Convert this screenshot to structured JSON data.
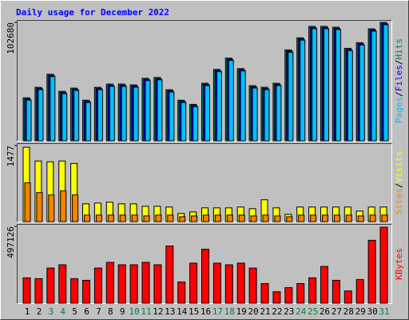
{
  "chart_data": [
    {
      "type": "bar",
      "title": "Daily usage for December 2022",
      "title_color": "#0000ff",
      "ylim": [
        0,
        102680
      ],
      "yticks": [
        102680
      ],
      "legend_separator": "/",
      "series": [
        {
          "name": "Hits",
          "color": "#00805c",
          "values": [
            37300,
            46400,
            57700,
            42900,
            45700,
            35200,
            46400,
            49200,
            49200,
            48500,
            54200,
            54900,
            44300,
            35200,
            31600,
            49900,
            61900,
            71700,
            62600,
            47800,
            46400,
            49900,
            78800,
            89300,
            99200,
            99200,
            98500,
            80200,
            85100,
            97100,
            102680
          ]
        },
        {
          "name": "Files",
          "color": "#0000ff",
          "values": [
            36300,
            45400,
            56700,
            41900,
            44700,
            34200,
            45400,
            48200,
            48200,
            47500,
            53200,
            53900,
            43300,
            34200,
            30600,
            48900,
            60900,
            70700,
            61600,
            46800,
            45400,
            48900,
            77800,
            88300,
            98200,
            98200,
            97500,
            79200,
            84100,
            96100,
            101600
          ]
        },
        {
          "name": "Pages",
          "color": "#00c0ff",
          "values": [
            35300,
            44400,
            55700,
            40900,
            43700,
            33200,
            44400,
            47200,
            47200,
            46500,
            52200,
            52900,
            42300,
            33200,
            29600,
            47900,
            59900,
            69700,
            60600,
            45800,
            44400,
            47900,
            76800,
            87300,
            97200,
            97200,
            96500,
            78200,
            83100,
            95100,
            100600
          ]
        }
      ]
    },
    {
      "type": "bar",
      "ylim": [
        0,
        1477
      ],
      "yticks": [
        1477
      ],
      "legend_separator": "/",
      "series": [
        {
          "name": "Visits",
          "color": "#ffff00",
          "values": [
            1445,
            1178,
            1162,
            1178,
            1130,
            345,
            361,
            377,
            345,
            345,
            298,
            298,
            283,
            157,
            188,
            267,
            267,
            267,
            283,
            251,
            424,
            267,
            141,
            283,
            283,
            283,
            283,
            283,
            204,
            283,
            283
          ]
        },
        {
          "name": "Sites",
          "color": "#ff8000",
          "values": [
            754,
            565,
            518,
            597,
            518,
            126,
            126,
            126,
            126,
            126,
            110,
            126,
            126,
            94,
            110,
            126,
            126,
            126,
            126,
            110,
            126,
            110,
            94,
            126,
            126,
            126,
            126,
            126,
            110,
            126,
            126
          ]
        }
      ]
    },
    {
      "type": "bar",
      "ylim": [
        0,
        497126
      ],
      "yticks": [
        497126
      ],
      "series": [
        {
          "name": "KBytes",
          "color": "#ff0000",
          "values": [
            164000,
            158700,
            227400,
            248600,
            158700,
            148100,
            227400,
            264400,
            248600,
            248600,
            264400,
            248600,
            370200,
            137500,
            259200,
            349100,
            259200,
            248600,
            259200,
            227400,
            126900,
            74000,
            100500,
            126900,
            164000,
            238000,
            148100,
            79300,
            153400,
            407200,
            491900
          ]
        }
      ],
      "categories": [
        "1",
        "2",
        "3",
        "4",
        "5",
        "6",
        "7",
        "8",
        "9",
        "10",
        "11",
        "12",
        "13",
        "14",
        "15",
        "16",
        "17",
        "18",
        "19",
        "20",
        "21",
        "22",
        "23",
        "24",
        "25",
        "26",
        "27",
        "28",
        "29",
        "30",
        "31"
      ],
      "category_colors": [
        "#000000",
        "#000000",
        "#008040",
        "#008040",
        "#000000",
        "#000000",
        "#000000",
        "#000000",
        "#000000",
        "#008040",
        "#008040",
        "#000000",
        "#000000",
        "#000000",
        "#000000",
        "#000000",
        "#008040",
        "#008040",
        "#000000",
        "#000000",
        "#000000",
        "#000000",
        "#000000",
        "#008040",
        "#008040",
        "#000000",
        "#000000",
        "#000000",
        "#000000",
        "#000000",
        "#008040"
      ]
    }
  ]
}
